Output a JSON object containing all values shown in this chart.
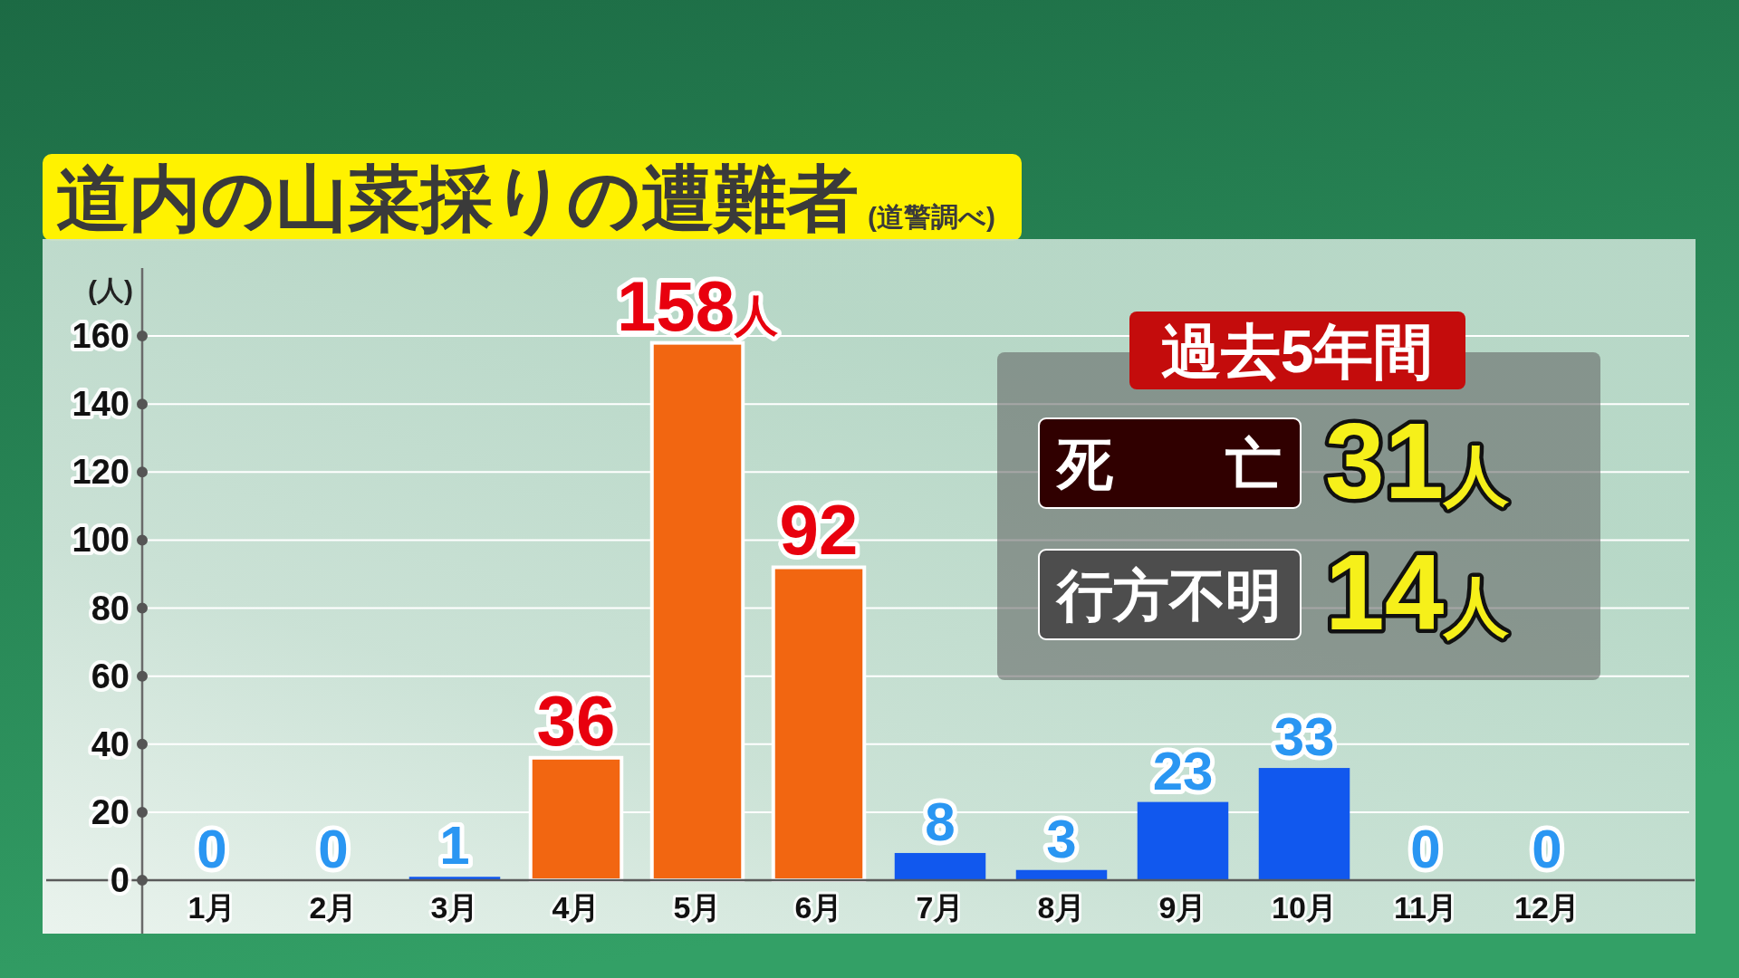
{
  "chart_data": {
    "type": "bar",
    "title": "道内の山菜採りの遭難者",
    "subtitle": "(道警調べ)",
    "ylabel": "(人)",
    "categories": [
      "1月",
      "2月",
      "3月",
      "4月",
      "5月",
      "6月",
      "7月",
      "8月",
      "9月",
      "10月",
      "11月",
      "12月"
    ],
    "values": [
      0,
      0,
      1,
      36,
      158,
      92,
      8,
      3,
      23,
      33,
      0,
      0
    ],
    "colors": [
      "#1158ee",
      "#1158ee",
      "#1158ee",
      "#f26611",
      "#f26611",
      "#f26611",
      "#1158ee",
      "#1158ee",
      "#1158ee",
      "#1158ee",
      "#1158ee",
      "#1158ee"
    ],
    "value_labels": [
      "0",
      "0",
      "1",
      "36",
      "158人",
      "92",
      "8",
      "3",
      "23",
      "33",
      "0",
      "0"
    ],
    "ylim": [
      0,
      180
    ],
    "yticks": [
      0,
      20,
      40,
      60,
      80,
      100,
      120,
      140,
      160
    ],
    "grid": "y",
    "annotations": [
      "過去5年間",
      "死　　亡",
      "31人",
      "行方不明",
      "14人"
    ]
  }
}
